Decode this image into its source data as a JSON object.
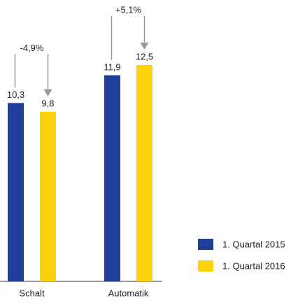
{
  "chart_data": {
    "type": "bar",
    "categories": [
      "Schalt",
      "Automatik"
    ],
    "series": [
      {
        "name": "1. Quartal 2015",
        "color": "#1f3f99",
        "values": [
          10.3,
          11.9
        ],
        "value_labels": [
          "10,3",
          "11,9"
        ]
      },
      {
        "name": "1. Quartal 2016",
        "color": "#fcd20f",
        "values": [
          9.8,
          12.5
        ],
        "value_labels": [
          "9,8",
          "12,5"
        ]
      }
    ],
    "annotations": [
      "-4,9%",
      "+5,1%"
    ],
    "legend": "lower right"
  }
}
